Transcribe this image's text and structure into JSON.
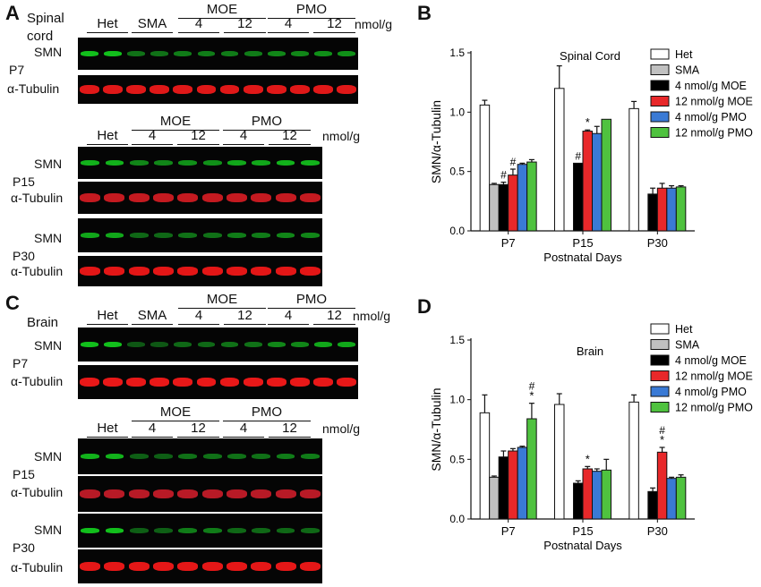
{
  "panels": {
    "A": {
      "letter": "A",
      "tissue_lines": [
        "Spinal",
        "cord"
      ],
      "blots": [
        {
          "age": "P7",
          "groups": [
            "Het",
            "SMA",
            "4",
            "12",
            "4",
            "12"
          ],
          "supergroups": [
            "MOE",
            "PMO"
          ],
          "unit": "nmol/g",
          "smn": "SMN",
          "tub": "α-Tubulin",
          "smn_levels": [
            0.85,
            0.5,
            0.55,
            0.55,
            0.6,
            0.65
          ]
        },
        {
          "age": "P15",
          "groups": [
            "Het",
            "4",
            "12",
            "4",
            "12"
          ],
          "supergroups": [
            "MOE",
            "PMO"
          ],
          "unit": "nmol/g",
          "smn": "SMN",
          "tub": "α-Tubulin",
          "smn_levels": [
            0.8,
            0.6,
            0.65,
            0.75,
            0.8
          ]
        },
        {
          "age": "P30",
          "groups": [],
          "supergroups": [],
          "unit": "",
          "smn": "SMN",
          "tub": "α-Tubulin",
          "smn_levels": [
            0.75,
            0.45,
            0.5,
            0.55,
            0.6
          ]
        }
      ]
    },
    "C": {
      "letter": "C",
      "tissue_lines": [
        "Brain"
      ],
      "blots": [
        {
          "age": "P7",
          "groups": [
            "Het",
            "SMA",
            "4",
            "12",
            "4",
            "12"
          ],
          "supergroups": [
            "MOE",
            "PMO"
          ],
          "unit": "nmol/g",
          "smn": "SMN",
          "tub": "α-Tubulin",
          "smn_levels": [
            0.85,
            0.35,
            0.45,
            0.5,
            0.6,
            0.75
          ]
        },
        {
          "age": "P15",
          "groups": [
            "Het",
            "4",
            "12",
            "4",
            "12"
          ],
          "supergroups": [
            "MOE",
            "PMO"
          ],
          "unit": "nmol/g",
          "smn": "SMN",
          "tub": "α-Tubulin",
          "smn_levels": [
            0.8,
            0.4,
            0.5,
            0.5,
            0.55
          ]
        },
        {
          "age": "P30",
          "groups": [],
          "supergroups": [],
          "unit": "",
          "smn": "SMN",
          "tub": "α-Tubulin",
          "smn_levels": [
            0.85,
            0.4,
            0.55,
            0.45,
            0.45
          ]
        }
      ]
    }
  },
  "chart_data": [
    {
      "panel": "B",
      "type": "bar",
      "title": "Spinal Cord",
      "xlabel": "Postnatal Days",
      "ylabel": "SMN/α-Tubulin",
      "ylim": [
        0,
        1.5
      ],
      "yticks": [
        "0.0",
        "0.5",
        "1.0",
        "1.5"
      ],
      "categories": [
        "P7",
        "P15",
        "P30"
      ],
      "legend_position": "top-right",
      "series": [
        {
          "name": "Het",
          "color": "#ffffff",
          "values": [
            1.06,
            1.2,
            1.03
          ],
          "errors": [
            0.04,
            0.19,
            0.06
          ]
        },
        {
          "name": "SMA",
          "color": "#c0c0c0",
          "values": [
            0.39,
            null,
            null
          ],
          "errors": [
            0.01,
            null,
            null
          ]
        },
        {
          "name": "4 nmol/g MOE",
          "color": "#000000",
          "values": [
            0.39,
            0.57,
            0.31
          ],
          "errors": [
            0.02,
            0.0,
            0.05
          ]
        },
        {
          "name": "12 nmol/g MOE",
          "color": "#e8282a",
          "values": [
            0.47,
            0.84,
            0.36
          ],
          "errors": [
            0.05,
            0.01,
            0.04
          ]
        },
        {
          "name": "4 nmol/g PMO",
          "color": "#3a7ad5",
          "values": [
            0.56,
            0.82,
            0.36
          ],
          "errors": [
            0.01,
            0.06,
            0.02
          ]
        },
        {
          "name": "12 nmol/g PMO",
          "color": "#4fc23f",
          "values": [
            0.58,
            0.94,
            0.37
          ],
          "errors": [
            0.02,
            0.0,
            0.01
          ]
        }
      ],
      "annotations": [
        {
          "category": "P7",
          "series": "4 nmol/g MOE",
          "text": "#"
        },
        {
          "category": "P7",
          "series": "12 nmol/g MOE",
          "text": "#"
        },
        {
          "category": "P15",
          "series": "4 nmol/g MOE",
          "text": "#"
        },
        {
          "category": "P15",
          "series": "12 nmol/g MOE",
          "text": "*"
        }
      ]
    },
    {
      "panel": "D",
      "type": "bar",
      "title": "Brain",
      "xlabel": "Postnatal Days",
      "ylabel": "SMN/α-Tubulin",
      "ylim": [
        0,
        1.5
      ],
      "yticks": [
        "0.0",
        "0.5",
        "1.0",
        "1.5"
      ],
      "categories": [
        "P7",
        "P15",
        "P30"
      ],
      "legend_position": "top-right",
      "series": [
        {
          "name": "Het",
          "color": "#ffffff",
          "values": [
            0.89,
            0.96,
            0.98
          ],
          "errors": [
            0.15,
            0.09,
            0.06
          ]
        },
        {
          "name": "SMA",
          "color": "#c0c0c0",
          "values": [
            0.35,
            null,
            null
          ],
          "errors": [
            0.01,
            null,
            null
          ]
        },
        {
          "name": "4 nmol/g MOE",
          "color": "#000000",
          "values": [
            0.52,
            0.3,
            0.23
          ],
          "errors": [
            0.05,
            0.02,
            0.03
          ]
        },
        {
          "name": "12 nmol/g MOE",
          "color": "#e8282a",
          "values": [
            0.57,
            0.42,
            0.56
          ],
          "errors": [
            0.02,
            0.02,
            0.04
          ]
        },
        {
          "name": "4 nmol/g PMO",
          "color": "#3a7ad5",
          "values": [
            0.6,
            0.4,
            0.34
          ],
          "errors": [
            0.01,
            0.02,
            0.01
          ]
        },
        {
          "name": "12 nmol/g PMO",
          "color": "#4fc23f",
          "values": [
            0.84,
            0.41,
            0.35
          ],
          "errors": [
            0.13,
            0.09,
            0.02
          ]
        }
      ],
      "annotations": [
        {
          "category": "P7",
          "series": "12 nmol/g PMO",
          "text": "#"
        },
        {
          "category": "P7",
          "series": "12 nmol/g PMO",
          "text": "*"
        },
        {
          "category": "P15",
          "series": "12 nmol/g MOE",
          "text": "*"
        },
        {
          "category": "P30",
          "series": "12 nmol/g MOE",
          "text": "#"
        },
        {
          "category": "P30",
          "series": "12 nmol/g MOE",
          "text": "*"
        }
      ]
    }
  ],
  "letters": {
    "B": "B",
    "D": "D"
  }
}
